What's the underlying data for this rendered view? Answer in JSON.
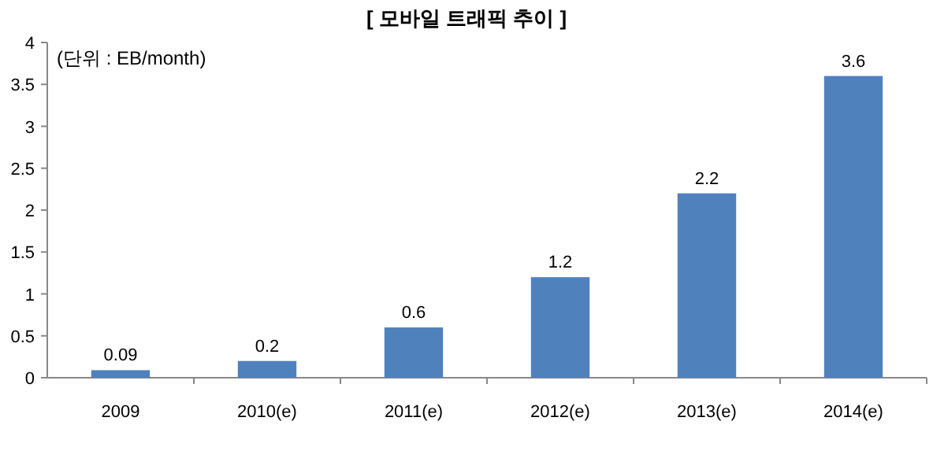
{
  "chart_data": {
    "type": "bar",
    "title": "[ 모바일 트래픽 추이 ]",
    "annotations": [
      "(단위 : EB/month)"
    ],
    "categories": [
      "2009",
      "2010(e)",
      "2011(e)",
      "2012(e)",
      "2013(e)",
      "2014(e)"
    ],
    "values": [
      0.09,
      0.2,
      0.6,
      1.2,
      2.2,
      3.6
    ],
    "color": "#4f81bd",
    "ylim": [
      0,
      4
    ],
    "yticks": [
      0,
      0.5,
      1,
      1.5,
      2,
      2.5,
      3,
      3.5,
      4
    ],
    "data_labels": true,
    "grid": false
  }
}
